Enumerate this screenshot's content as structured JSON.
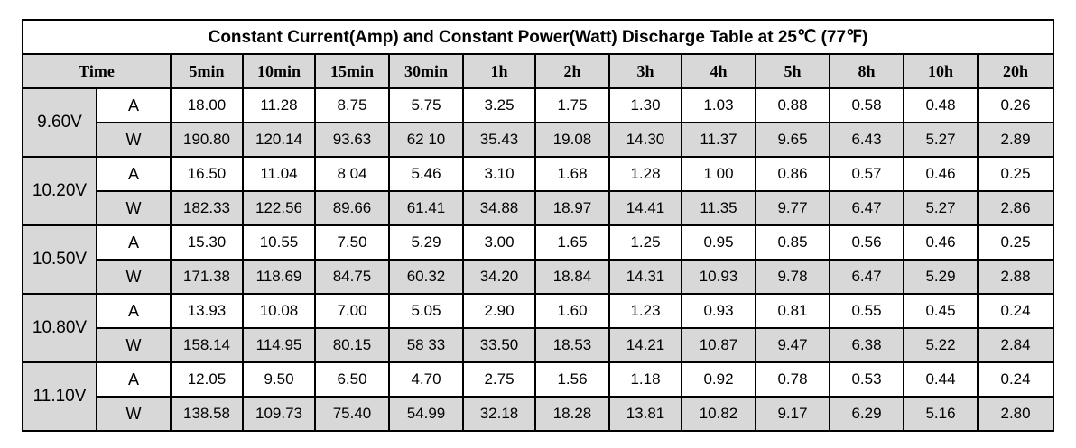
{
  "title": "Constant Current(Amp) and Constant Power(Watt) Discharge Table at 25℃ (77℉)",
  "header": {
    "time_label": "Time",
    "columns": [
      "5min",
      "10min",
      "15min",
      "30min",
      "1h",
      "2h",
      "3h",
      "4h",
      "5h",
      "8h",
      "10h",
      "20h"
    ]
  },
  "groups": [
    {
      "voltage": "9.60V",
      "a_label": "A",
      "a_values": [
        "18.00",
        "11.28",
        "8.75",
        "5.75",
        "3.25",
        "1.75",
        "1.30",
        "1.03",
        "0.88",
        "0.58",
        "0.48",
        "0.26"
      ],
      "w_label": "W",
      "w_values": [
        "190.80",
        "120.14",
        "93.63",
        "62 10",
        "35.43",
        "19.08",
        "14.30",
        "11.37",
        "9.65",
        "6.43",
        "5.27",
        "2.89"
      ]
    },
    {
      "voltage": "10.20V",
      "a_label": "A",
      "a_values": [
        "16.50",
        "11.04",
        "8 04",
        "5.46",
        "3.10",
        "1.68",
        "1.28",
        "1 00",
        "0.86",
        "0.57",
        "0.46",
        "0.25"
      ],
      "w_label": "W",
      "w_values": [
        "182.33",
        "122.56",
        "89.66",
        "61.41",
        "34.88",
        "18.97",
        "14.41",
        "11.35",
        "9.77",
        "6.47",
        "5.27",
        "2.86"
      ]
    },
    {
      "voltage": "10.50V",
      "a_label": "A",
      "a_values": [
        "15.30",
        "10.55",
        "7.50",
        "5.29",
        "3.00",
        "1.65",
        "1.25",
        "0.95",
        "0.85",
        "0.56",
        "0.46",
        "0.25"
      ],
      "w_label": "W",
      "w_values": [
        "171.38",
        "118.69",
        "84.75",
        "60.32",
        "34.20",
        "18.84",
        "14.31",
        "10.93",
        "9.78",
        "6.47",
        "5.29",
        "2.88"
      ]
    },
    {
      "voltage": "10.80V",
      "a_label": "A",
      "a_values": [
        "13.93",
        "10.08",
        "7.00",
        "5.05",
        "2.90",
        "1.60",
        "1.23",
        "0.93",
        "0.81",
        "0.55",
        "0.45",
        "0.24"
      ],
      "w_label": "W",
      "w_values": [
        "158.14",
        "114.95",
        "80.15",
        "58 33",
        "33.50",
        "18.53",
        "14.21",
        "10.87",
        "9.47",
        "6.38",
        "5.22",
        "2.84"
      ]
    },
    {
      "voltage": "11.10V",
      "a_label": "A",
      "a_values": [
        "12.05",
        "9.50",
        "6.50",
        "4.70",
        "2.75",
        "1.56",
        "1.18",
        "0.92",
        "0.78",
        "0.53",
        "0.44",
        "0.24"
      ],
      "w_label": "W",
      "w_values": [
        "138.58",
        "109.73",
        "75.40",
        "54.99",
        "32.18",
        "18.28",
        "13.81",
        "10.82",
        "9.17",
        "6.29",
        "5.16",
        "2.80"
      ]
    }
  ],
  "colors": {
    "border": "#000000",
    "shaded": "#d8d8d8",
    "white": "#ffffff"
  }
}
